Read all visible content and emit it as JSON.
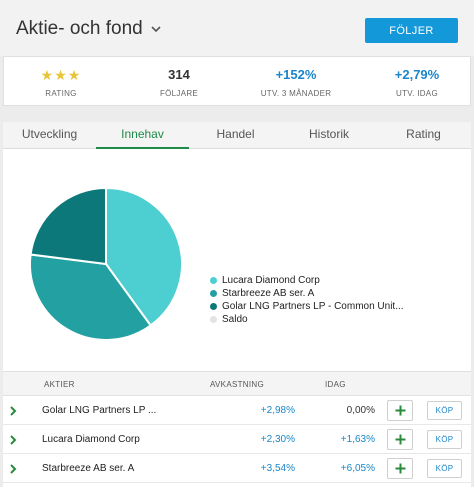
{
  "header": {
    "title": "Aktie- och fond",
    "follow_label": "FÖLJER"
  },
  "stats": {
    "rating_stars": "★★★",
    "rating_label": "RATING",
    "followers_value": "314",
    "followers_label": "FÖLJARE",
    "change3m_value": "+152%",
    "change3m_label": "UTV. 3 MÅNADER",
    "today_value": "+2,79%",
    "today_label": "UTV. IDAG"
  },
  "tabs": [
    {
      "label": "Utveckling",
      "active": false
    },
    {
      "label": "Innehav",
      "active": true
    },
    {
      "label": "Handel",
      "active": false
    },
    {
      "label": "Historik",
      "active": false
    },
    {
      "label": "Rating",
      "active": false
    }
  ],
  "chart_data": {
    "type": "pie",
    "slices": [
      {
        "name": "Lucara Diamond Corp",
        "value": 40,
        "color": "#4dcfd1"
      },
      {
        "name": "Starbreeze AB ser. A",
        "value": 37,
        "color": "#23a0a2"
      },
      {
        "name": "Golar LNG Partners LP - Common Unit...",
        "value": 23,
        "color": "#0c787a"
      },
      {
        "name": "Saldo",
        "value": 0,
        "color": "#e3e3e3"
      }
    ]
  },
  "table": {
    "headers": {
      "aktier": "AKTIER",
      "avkastning": "AVKASTNING",
      "idag": "IDAG"
    },
    "rows": [
      {
        "name": "Golar LNG Partners LP ...",
        "return": "+2,98%",
        "today": "0,00%",
        "buy": "KÖP"
      },
      {
        "name": "Lucara Diamond Corp",
        "return": "+2,30%",
        "today": "+1,63%",
        "buy": "KÖP"
      },
      {
        "name": "Starbreeze AB ser. A",
        "return": "+3,54%",
        "today": "+6,05%",
        "buy": "KÖP"
      }
    ]
  },
  "colors": {
    "accent_blue": "#1398d9",
    "value_blue": "#1a86c9",
    "tab_active_green": "#1e8a48",
    "star_yellow": "#e8c437",
    "row_arrow_green": "#2a8a3e"
  },
  "icons": {
    "title_chevron": "chevron-down-icon",
    "row_expand": "chevron-right-icon",
    "add": "plus-icon"
  }
}
